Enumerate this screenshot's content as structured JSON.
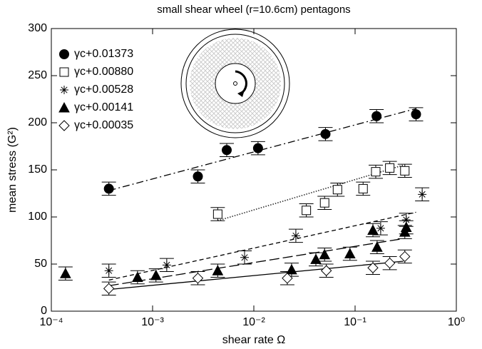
{
  "chart_data": {
    "type": "scatter",
    "title": "small shear wheel (r=10.6cm)  pentagons",
    "x_label": "shear rate Ω",
    "y_label": "mean stress (G²)",
    "x_log": true,
    "xlim": [
      0.0001,
      1
    ],
    "xticks": [
      {
        "value": 0.0001,
        "label": "10⁻⁴"
      },
      {
        "value": 0.001,
        "label": "10⁻³"
      },
      {
        "value": 0.01,
        "label": "10⁻²"
      },
      {
        "value": 0.1,
        "label": "10⁻¹"
      },
      {
        "value": 1,
        "label": "10⁰"
      }
    ],
    "ylim": [
      0,
      300
    ],
    "yticks": [
      0,
      50,
      100,
      150,
      200,
      250,
      300
    ],
    "legend": "top-left",
    "series": [
      {
        "name": "γc+0.01373",
        "marker": "circle-filled",
        "color": "#000",
        "x": [
          0.00037,
          0.0028,
          0.0054,
          0.011,
          0.051,
          0.163,
          0.4
        ],
        "values": [
          130,
          143,
          171,
          173,
          188,
          207,
          209
        ],
        "error": 7,
        "fit": {
          "x": [
            0.00037,
            0.4
          ],
          "y": [
            128,
            215
          ]
        },
        "fit_dash": "10 4 2 4"
      },
      {
        "name": "γc+0.00880",
        "marker": "square-open",
        "color": "#000",
        "x": [
          0.0044,
          0.033,
          0.05,
          0.067,
          0.12,
          0.16,
          0.22,
          0.31
        ],
        "values": [
          103,
          107,
          115,
          129,
          130,
          148,
          152,
          149
        ],
        "error": 7,
        "fit": {
          "x": [
            0.0044,
            0.3
          ],
          "y": [
            96,
            155
          ]
        },
        "fit_dash": "1.5 2"
      },
      {
        "name": "γc+0.00528",
        "marker": "asterisk",
        "color": "#000",
        "x": [
          0.00037,
          0.00138,
          0.0081,
          0.026,
          0.179,
          0.32,
          0.46
        ],
        "values": [
          43,
          49,
          57,
          80,
          88,
          97,
          124
        ],
        "error": 7,
        "fit": {
          "x": [
            0.00037,
            0.4
          ],
          "y": [
            33,
            105
          ]
        },
        "fit_dash": "6 4"
      },
      {
        "name": "γc+0.00141",
        "marker": "triangle-filled",
        "color": "#000",
        "x": [
          0.000138,
          0.00071,
          0.00108,
          0.0044,
          0.0236,
          0.041,
          0.05,
          0.089,
          0.15,
          0.165,
          0.31,
          0.32
        ],
        "values": [
          40,
          36,
          38,
          43,
          44,
          55,
          60,
          61,
          86,
          68,
          84,
          89
        ],
        "error": 7,
        "fit": {
          "x": [
            0.00037,
            0.3
          ],
          "y": [
            27,
            77
          ]
        },
        "fit_dash": "14 5"
      },
      {
        "name": "γc+0.00035",
        "marker": "diamond-open",
        "color": "#000",
        "x": [
          0.00037,
          0.0028,
          0.0214,
          0.052,
          0.15,
          0.22,
          0.31
        ],
        "values": [
          24,
          35,
          35,
          43,
          46,
          51,
          58
        ],
        "error": 7,
        "fit": {
          "x": [
            0.00037,
            0.3
          ],
          "y": [
            23,
            53
          ]
        },
        "fit_dash": ""
      }
    ]
  }
}
